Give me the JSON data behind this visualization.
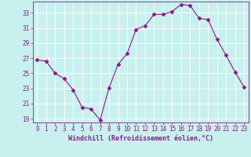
{
  "x": [
    0,
    1,
    2,
    3,
    4,
    5,
    6,
    7,
    8,
    9,
    10,
    11,
    12,
    13,
    14,
    15,
    16,
    17,
    18,
    19,
    20,
    21,
    22,
    23
  ],
  "y": [
    26.8,
    26.6,
    25.0,
    24.3,
    22.8,
    20.5,
    20.3,
    18.8,
    23.1,
    26.2,
    27.6,
    30.8,
    31.3,
    32.8,
    32.8,
    33.2,
    34.1,
    34.0,
    32.3,
    32.1,
    29.5,
    27.4,
    25.2,
    23.2
  ],
  "line_color": "#8b1a8b",
  "marker": "D",
  "marker_size": 2.5,
  "bg_color": "#c8f0ee",
  "grid_color": "#ffffff",
  "xlabel": "Windchill (Refroidissement éolien,°C)",
  "xlim": [
    -0.5,
    23.5
  ],
  "ylim": [
    18.5,
    34.5
  ],
  "yticks": [
    19,
    21,
    23,
    25,
    27,
    29,
    31,
    33
  ],
  "xticks": [
    0,
    1,
    2,
    3,
    4,
    5,
    6,
    7,
    8,
    9,
    10,
    11,
    12,
    13,
    14,
    15,
    16,
    17,
    18,
    19,
    20,
    21,
    22,
    23
  ],
  "tick_color": "#8b1a8b",
  "label_fontsize": 6.0,
  "tick_fontsize": 5.5,
  "linewidth": 0.8
}
